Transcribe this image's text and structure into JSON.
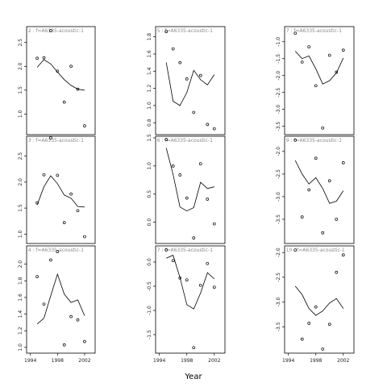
{
  "chart_data": {
    "type": "scatter",
    "xlabel": "Year",
    "ylabel": "",
    "grid": false,
    "x_ticks": [
      1994,
      1998,
      2002
    ],
    "xlim": [
      1993.8,
      2003.2
    ],
    "line_color": "#000000",
    "point_color": "#000000",
    "strip_text_color": "#888888",
    "panels": [
      {
        "strip": "i=2 :  f=A6335-acoustic-1",
        "ylim": [
          0.6,
          2.8
        ],
        "y_ticks": [
          1.0,
          1.5,
          2.0,
          2.5
        ],
        "y_tick_labels": [
          "1.0",
          "1.5",
          "2.0",
          "2.5"
        ],
        "points": [
          [
            1995,
            2.17
          ],
          [
            1996,
            2.18
          ],
          [
            1997,
            2.75
          ],
          [
            1998,
            1.9
          ],
          [
            1999,
            1.25
          ],
          [
            2000,
            2.0
          ],
          [
            2001,
            1.52
          ],
          [
            2002,
            0.75
          ]
        ],
        "line": [
          [
            1995,
            1.98
          ],
          [
            1996,
            2.14
          ],
          [
            1997,
            2.05
          ],
          [
            1998,
            1.88
          ],
          [
            1999,
            1.72
          ],
          [
            2000,
            1.6
          ],
          [
            2001,
            1.52
          ],
          [
            2002,
            1.5
          ]
        ]
      },
      {
        "strip": "i=5 :  f=A6335-acoustic-1",
        "ylim": [
          0.68,
          1.9
        ],
        "y_ticks": [
          0.8,
          1.0,
          1.2,
          1.4,
          1.6,
          1.8
        ],
        "y_tick_labels": [
          "0.8",
          "1.0",
          "1.2",
          "1.4",
          "1.6",
          "1.8"
        ],
        "points": [
          [
            1995,
            1.86
          ],
          [
            1996,
            1.66
          ],
          [
            1997,
            1.5
          ],
          [
            1998,
            1.31
          ],
          [
            1999,
            0.92
          ],
          [
            2000,
            1.35
          ],
          [
            2001,
            0.78
          ],
          [
            2002,
            0.73
          ]
        ],
        "line": [
          [
            1995,
            1.5
          ],
          [
            1996,
            1.05
          ],
          [
            1997,
            1.0
          ],
          [
            1998,
            1.15
          ],
          [
            1999,
            1.41
          ],
          [
            2000,
            1.3
          ],
          [
            2001,
            1.24
          ],
          [
            2002,
            1.36
          ]
        ]
      },
      {
        "strip": "i=7 :  f=A6335-acoustic-1",
        "ylim": [
          -3.7,
          -0.6
        ],
        "y_ticks": [
          -3.5,
          -3.0,
          -2.5,
          -2.0,
          -1.5,
          -1.0
        ],
        "y_tick_labels": [
          "-3.5",
          "-3.0",
          "-2.5",
          "-2.0",
          "-1.5",
          "-1.0"
        ],
        "points": [
          [
            1995,
            -0.75
          ],
          [
            1996,
            -1.6
          ],
          [
            1997,
            -1.15
          ],
          [
            1998,
            -2.3
          ],
          [
            1999,
            -3.55
          ],
          [
            2000,
            -1.4
          ],
          [
            2001,
            -1.9
          ],
          [
            2002,
            -1.25
          ]
        ],
        "line": [
          [
            1995,
            -1.28
          ],
          [
            1996,
            -1.5
          ],
          [
            1997,
            -1.42
          ],
          [
            1998,
            -1.8
          ],
          [
            1999,
            -2.25
          ],
          [
            2000,
            -2.15
          ],
          [
            2001,
            -1.92
          ],
          [
            2002,
            -1.48
          ]
        ]
      },
      {
        "strip": "i=3 :  f=A6335-acoustic-1",
        "ylim": [
          0.85,
          2.85
        ],
        "y_ticks": [
          1.0,
          1.5,
          2.0,
          2.5
        ],
        "y_tick_labels": [
          "1.0",
          "1.5",
          "2.0",
          "2.5"
        ],
        "points": [
          [
            1995,
            1.6
          ],
          [
            1996,
            2.14
          ],
          [
            1997,
            2.85
          ],
          [
            1998,
            2.13
          ],
          [
            1999,
            1.22
          ],
          [
            2000,
            1.77
          ],
          [
            2001,
            1.45
          ],
          [
            2002,
            0.95
          ]
        ],
        "line": [
          [
            1995,
            1.56
          ],
          [
            1996,
            1.91
          ],
          [
            1997,
            2.12
          ],
          [
            1998,
            1.97
          ],
          [
            1999,
            1.75
          ],
          [
            2000,
            1.69
          ],
          [
            2001,
            1.53
          ],
          [
            2002,
            1.52
          ]
        ]
      },
      {
        "strip": "i=6 :  f=A6335-acoustic-1",
        "ylim": [
          -0.35,
          1.5
        ],
        "y_ticks": [
          0.0,
          0.5,
          1.0,
          1.5
        ],
        "y_tick_labels": [
          "0.0",
          "0.5",
          "1.0",
          "1.5"
        ],
        "points": [
          [
            1995,
            1.47
          ],
          [
            1996,
            1.0
          ],
          [
            1997,
            0.84
          ],
          [
            1998,
            0.43
          ],
          [
            1999,
            -0.28
          ],
          [
            2000,
            1.04
          ],
          [
            2001,
            0.41
          ],
          [
            2002,
            -0.03
          ]
        ],
        "line": [
          [
            1995,
            1.32
          ],
          [
            1996,
            0.85
          ],
          [
            1997,
            0.27
          ],
          [
            1998,
            0.2
          ],
          [
            1999,
            0.26
          ],
          [
            2000,
            0.71
          ],
          [
            2001,
            0.6
          ],
          [
            2002,
            0.63
          ]
        ]
      },
      {
        "strip": "i=9 :  f=A6335-acoustic-1",
        "ylim": [
          -4.0,
          -1.7
        ],
        "y_ticks": [
          -3.5,
          -3.0,
          -2.5,
          -2.0
        ],
        "y_tick_labels": [
          "-3.5",
          "-3.0",
          "-2.5",
          "-2.0"
        ],
        "points": [
          [
            1995,
            -1.75
          ],
          [
            1996,
            -3.45
          ],
          [
            1997,
            -2.85
          ],
          [
            1998,
            -2.15
          ],
          [
            1999,
            -3.8
          ],
          [
            2000,
            -2.65
          ],
          [
            2001,
            -3.5
          ],
          [
            2002,
            -2.25
          ]
        ],
        "line": [
          [
            1995,
            -2.2
          ],
          [
            1996,
            -2.5
          ],
          [
            1997,
            -2.72
          ],
          [
            1998,
            -2.58
          ],
          [
            1999,
            -2.82
          ],
          [
            2000,
            -3.15
          ],
          [
            2001,
            -3.1
          ],
          [
            2002,
            -2.87
          ]
        ]
      },
      {
        "strip": "i=4 :  f=A6335-acoustic-1",
        "ylim": [
          0.95,
          2.2
        ],
        "y_ticks": [
          1.0,
          1.2,
          1.4,
          1.6,
          1.8,
          2.0
        ],
        "y_tick_labels": [
          "1.0",
          "1.2",
          "1.4",
          "1.6",
          "1.8",
          "2.0"
        ],
        "points": [
          [
            1995,
            1.85
          ],
          [
            1996,
            1.52
          ],
          [
            1997,
            2.05
          ],
          [
            1998,
            2.15
          ],
          [
            1999,
            1.03
          ],
          [
            2000,
            1.37
          ],
          [
            2001,
            1.33
          ],
          [
            2002,
            1.07
          ]
        ],
        "line": [
          [
            1995,
            1.28
          ],
          [
            1996,
            1.35
          ],
          [
            1997,
            1.62
          ],
          [
            1998,
            1.88
          ],
          [
            1999,
            1.64
          ],
          [
            2000,
            1.54
          ],
          [
            2001,
            1.57
          ],
          [
            2002,
            1.38
          ]
        ]
      },
      {
        "strip": "i=7 :  f=A6335-acoustic-1",
        "ylim": [
          -1.85,
          0.3
        ],
        "y_ticks": [
          -1.5,
          -1.0,
          -0.5,
          0.0
        ],
        "y_tick_labels": [
          "-1.5",
          "-1.0",
          "-0.5",
          "0.0"
        ],
        "points": [
          [
            1995,
            0.25
          ],
          [
            1996,
            0.03
          ],
          [
            1997,
            -0.33
          ],
          [
            1998,
            -0.37
          ],
          [
            1999,
            -1.77
          ],
          [
            2000,
            -0.48
          ],
          [
            2001,
            -0.03
          ],
          [
            2002,
            -0.52
          ]
        ],
        "line": [
          [
            1995,
            0.08
          ],
          [
            1996,
            0.14
          ],
          [
            1997,
            -0.32
          ],
          [
            1998,
            -0.88
          ],
          [
            1999,
            -0.97
          ],
          [
            2000,
            -0.64
          ],
          [
            2001,
            -0.22
          ],
          [
            2002,
            -0.35
          ]
        ]
      },
      {
        "strip": "i=10 :  f=A6335-acoustic-1",
        "ylim": [
          -4.0,
          -1.9
        ],
        "y_ticks": [
          -3.5,
          -3.0,
          -2.5,
          -2.0
        ],
        "y_tick_labels": [
          "-3.5",
          "-3.0",
          "-2.5",
          "-2.0"
        ],
        "points": [
          [
            1995,
            -1.95
          ],
          [
            1996,
            -3.75
          ],
          [
            1997,
            -3.43
          ],
          [
            1998,
            -3.1
          ],
          [
            1999,
            -3.95
          ],
          [
            2000,
            -3.45
          ],
          [
            2001,
            -2.4
          ],
          [
            2002,
            -2.05
          ]
        ],
        "line": [
          [
            1995,
            -2.68
          ],
          [
            1996,
            -2.85
          ],
          [
            1997,
            -3.13
          ],
          [
            1998,
            -3.27
          ],
          [
            1999,
            -3.18
          ],
          [
            2000,
            -3.02
          ],
          [
            2001,
            -2.93
          ],
          [
            2002,
            -3.13
          ]
        ]
      }
    ]
  }
}
